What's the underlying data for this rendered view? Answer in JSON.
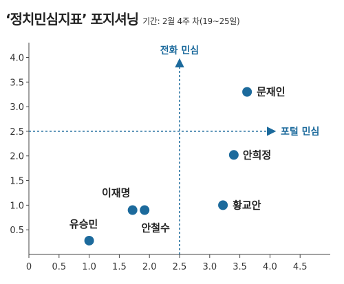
{
  "title": "‘정치민심지표’ 포지셔닝",
  "subtitle": "기간: 2월 4주 차(19~25일)",
  "chart_data": {
    "type": "scatter",
    "title": "‘정치민심지표’ 포지셔닝",
    "subtitle": "기간: 2월 4주 차(19~25일)",
    "xlabel": "포털 민심",
    "ylabel": "전화 민심",
    "xlim": [
      0,
      5
    ],
    "ylim": [
      0,
      4.3
    ],
    "xticks": [
      "0",
      "0.5",
      "1.0",
      "1.5",
      "2.0",
      "2.5",
      "3.0",
      "3.5",
      "4.0",
      "4.5"
    ],
    "yticks": [
      "0.5",
      "1.0",
      "1.5",
      "2.0",
      "2.5",
      "3.0",
      "3.5",
      "4.0"
    ],
    "reference_lines": {
      "x": 2.5,
      "y": 2.5
    },
    "point_color": "#1c6a9c",
    "points": [
      {
        "name": "문재인",
        "x": 3.62,
        "y": 3.3
      },
      {
        "name": "안희정",
        "x": 3.4,
        "y": 2.02
      },
      {
        "name": "황교안",
        "x": 3.22,
        "y": 1.0
      },
      {
        "name": "이재명",
        "x": 1.72,
        "y": 0.9
      },
      {
        "name": "안철수",
        "x": 1.92,
        "y": 0.9
      },
      {
        "name": "유승민",
        "x": 1.0,
        "y": 0.28
      }
    ]
  }
}
